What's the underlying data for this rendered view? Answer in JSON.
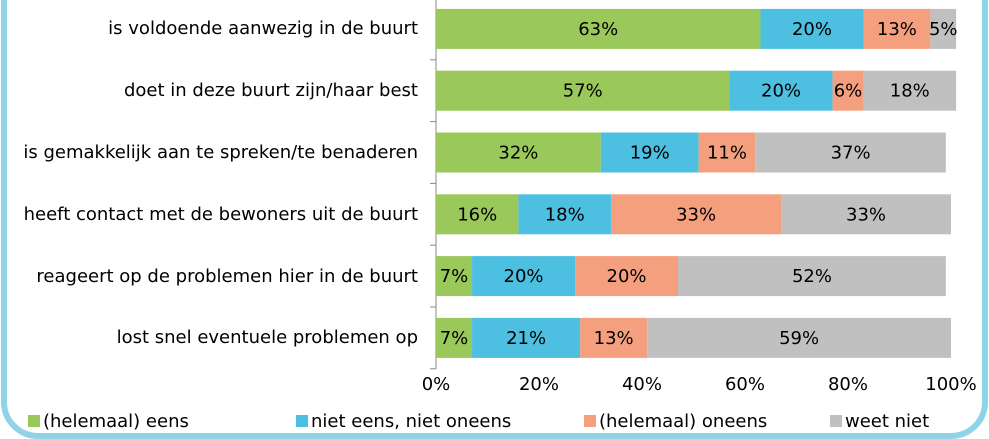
{
  "chart_data": {
    "type": "stacked-bar-horizontal",
    "categories": [
      "is voldoende aanwezig in de buurt",
      "doet in deze buurt zijn/haar best",
      "is gemakkelijk aan te spreken/te benaderen",
      "heeft contact met de bewoners uit de buurt",
      "reageert op de problemen hier in de buurt",
      "lost snel eventuele problemen op"
    ],
    "series": [
      {
        "name": "(helemaal) eens",
        "color": "#9bc85a",
        "values": [
          63,
          57,
          32,
          16,
          7,
          7
        ],
        "value_labels": [
          "63%",
          "57%",
          "32%",
          "16%",
          "7%",
          "7%"
        ]
      },
      {
        "name": "niet eens, niet oneens",
        "color": "#4dbfe0",
        "values": [
          20,
          20,
          19,
          18,
          20,
          21
        ],
        "value_labels": [
          "20%",
          "20%",
          "19%",
          "18%",
          "20%",
          "21%"
        ]
      },
      {
        "name": "(helemaal) oneens",
        "color": "#f4a07e",
        "values": [
          13,
          6,
          11,
          33,
          20,
          13
        ],
        "value_labels": [
          "13%",
          "6%",
          "11%",
          "33%",
          "20%",
          "13%"
        ]
      },
      {
        "name": "weet niet",
        "color": "#c0c0c0",
        "values": [
          5,
          18,
          37,
          33,
          52,
          59
        ],
        "value_labels": [
          "5%",
          "18%",
          "37%",
          "33%",
          "52%",
          "59%"
        ]
      }
    ],
    "xlim": [
      0,
      100
    ],
    "xticks": [
      {
        "value": 0,
        "label": "0%"
      },
      {
        "value": 20,
        "label": "20%"
      },
      {
        "value": 40,
        "label": "40%"
      },
      {
        "value": 60,
        "label": "60%"
      },
      {
        "value": 80,
        "label": "80%"
      },
      {
        "value": 100,
        "label": "100%"
      }
    ],
    "legend": "bottom"
  }
}
